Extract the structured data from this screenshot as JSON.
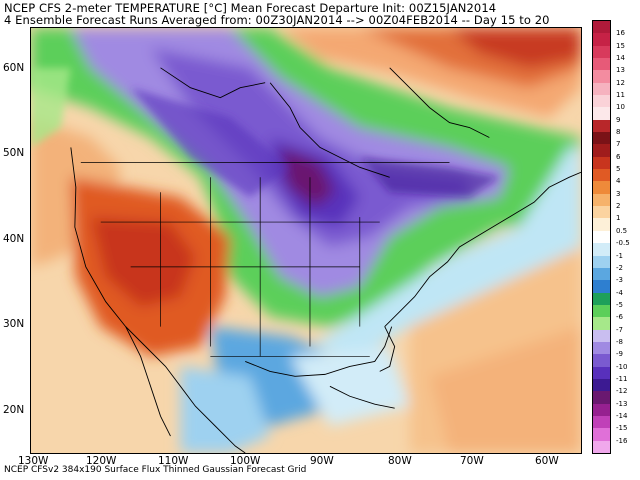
{
  "title_line1": "NCEP CFS 2-meter TEMPERATURE [°C] Mean Forecast Departure Init: 00Z15JAN2014",
  "title_line2": "4 Ensemble Forecast Runs Averaged from: 00Z30JAN2014 --> 00Z04FEB2014 -- Day 15 to 20",
  "footer": "NCEP CFSv2 384x190 Surface Flux Thinned Gaussian Forecast Grid",
  "map": {
    "lat_labels": [
      "60N",
      "50N",
      "40N",
      "30N",
      "20N"
    ],
    "lon_labels": [
      "130W",
      "120W",
      "110W",
      "100W",
      "90W",
      "80W",
      "70W",
      "60W"
    ]
  },
  "colorbar": {
    "labels": [
      "16",
      "15",
      "14",
      "13",
      "12",
      "11",
      "10",
      "9",
      "8",
      "7",
      "6",
      "5",
      "4",
      "3",
      "2",
      "1",
      "0.5",
      "-0.5",
      "-1",
      "-2",
      "-3",
      "-4",
      "-5",
      "-6",
      "-7",
      "-8",
      "-9",
      "-10",
      "-11",
      "-12",
      "-13",
      "-14",
      "-15",
      "-16"
    ],
    "colors": [
      "#b01a3a",
      "#c62246",
      "#d83a5c",
      "#e75a78",
      "#f38ca0",
      "#f6b2bf",
      "#fad2d8",
      "#fce8ea",
      "#b8272a",
      "#7a1217",
      "#a01c1c",
      "#c8351e",
      "#e05a24",
      "#ee8a3a",
      "#f6b26b",
      "#fbd3a0",
      "#fdf0d8",
      "#ffffff",
      "#d2ecf8",
      "#9ed1f0",
      "#5ba7e0",
      "#2e7fd0",
      "#1ea05a",
      "#5ccf5a",
      "#a6e88a",
      "#c9bef0",
      "#a08ae2",
      "#7a5ad0",
      "#5830bc",
      "#3c1a92",
      "#6a1870",
      "#962090",
      "#c040b8",
      "#e070d8",
      "#f0a8ec"
    ]
  }
}
